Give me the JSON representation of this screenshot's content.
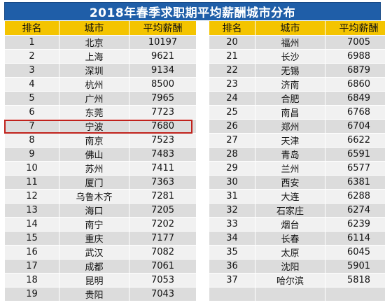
{
  "title": "2018年春季求职期平均薪酬城市分布",
  "headers": [
    "排名",
    "城市",
    "平均薪酬",
    "排名",
    "城市",
    "平均薪酬"
  ],
  "left": [
    {
      "rank": "1",
      "city": "北京",
      "salary": "10197"
    },
    {
      "rank": "2",
      "city": "上海",
      "salary": "9621"
    },
    {
      "rank": "3",
      "city": "深圳",
      "salary": "9134"
    },
    {
      "rank": "4",
      "city": "杭州",
      "salary": "8500"
    },
    {
      "rank": "5",
      "city": "广州",
      "salary": "7965"
    },
    {
      "rank": "6",
      "city": "东莞",
      "salary": "7723"
    },
    {
      "rank": "7",
      "city": "宁波",
      "salary": "7680"
    },
    {
      "rank": "8",
      "city": "南京",
      "salary": "7523"
    },
    {
      "rank": "9",
      "city": "佛山",
      "salary": "7483"
    },
    {
      "rank": "10",
      "city": "苏州",
      "salary": "7411"
    },
    {
      "rank": "11",
      "city": "厦门",
      "salary": "7363"
    },
    {
      "rank": "12",
      "city": "乌鲁木齐",
      "salary": "7281"
    },
    {
      "rank": "13",
      "city": "海口",
      "salary": "7205"
    },
    {
      "rank": "14",
      "city": "南宁",
      "salary": "7202"
    },
    {
      "rank": "15",
      "city": "重庆",
      "salary": "7177"
    },
    {
      "rank": "16",
      "city": "武汉",
      "salary": "7082"
    },
    {
      "rank": "17",
      "city": "成都",
      "salary": "7061"
    },
    {
      "rank": "18",
      "city": "昆明",
      "salary": "7053"
    },
    {
      "rank": "19",
      "city": "贵阳",
      "salary": "7043"
    }
  ],
  "right": [
    {
      "rank": "20",
      "city": "福州",
      "salary": "7005"
    },
    {
      "rank": "21",
      "city": "长沙",
      "salary": "6988"
    },
    {
      "rank": "22",
      "city": "无锡",
      "salary": "6879"
    },
    {
      "rank": "23",
      "city": "济南",
      "salary": "6860"
    },
    {
      "rank": "24",
      "city": "合肥",
      "salary": "6849"
    },
    {
      "rank": "25",
      "city": "南昌",
      "salary": "6768"
    },
    {
      "rank": "26",
      "city": "郑州",
      "salary": "6704"
    },
    {
      "rank": "27",
      "city": "天津",
      "salary": "6622"
    },
    {
      "rank": "28",
      "city": "青岛",
      "salary": "6591"
    },
    {
      "rank": "29",
      "city": "兰州",
      "salary": "6577"
    },
    {
      "rank": "30",
      "city": "西安",
      "salary": "6381"
    },
    {
      "rank": "31",
      "city": "大连",
      "salary": "6288"
    },
    {
      "rank": "32",
      "city": "石家庄",
      "salary": "6274"
    },
    {
      "rank": "33",
      "city": "烟台",
      "salary": "6239"
    },
    {
      "rank": "34",
      "city": "长春",
      "salary": "6114"
    },
    {
      "rank": "35",
      "city": "太原",
      "salary": "6045"
    },
    {
      "rank": "36",
      "city": "沈阳",
      "salary": "5901"
    },
    {
      "rank": "37",
      "city": "哈尔滨",
      "salary": "5818"
    },
    {
      "rank": "",
      "city": "",
      "salary": ""
    }
  ],
  "highlighted_rank": "7",
  "colors": {
    "title_bg": "#1f5ea8",
    "header_bg": "#f4c400",
    "row_odd": "#dcdcdc",
    "row_even": "#f1f1f1",
    "highlight_border": "#c0221c"
  }
}
